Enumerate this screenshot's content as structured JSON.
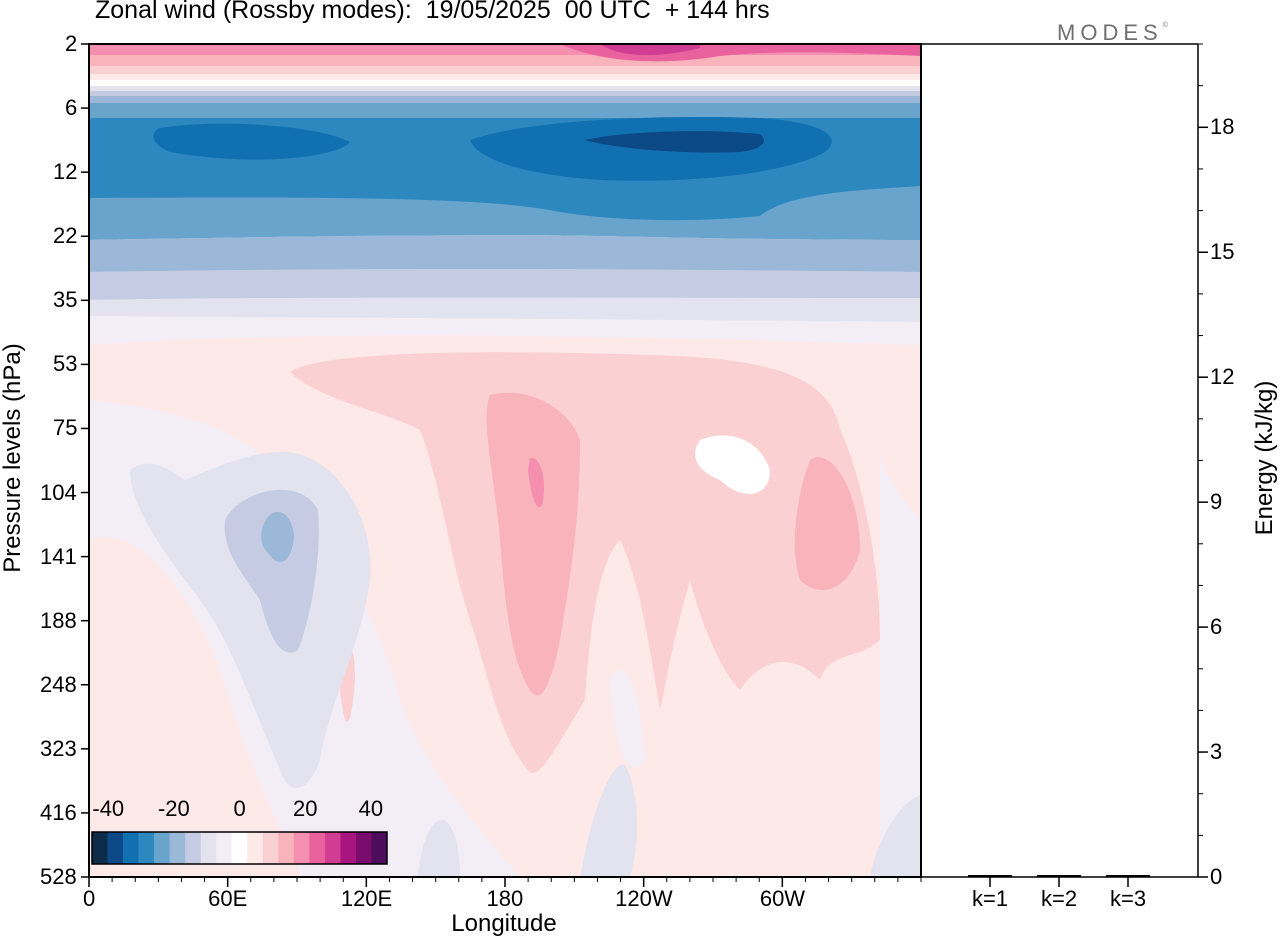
{
  "title": "Zonal wind (Rossby modes):  19/05/2025  00 UTC  + 144 hrs",
  "brand": {
    "text": "MODES",
    "mark": "©"
  },
  "chart_data": [
    {
      "type": "heatmap",
      "variable": "Zonal wind (Rossby modes)",
      "xlabel": "Longitude",
      "ylabel": "Pressure levels (hPa)",
      "x_ticks": [
        "0",
        "60E",
        "120E",
        "180",
        "120W",
        "60W"
      ],
      "x_range_deg": [
        0,
        360
      ],
      "y_ticks": [
        "2",
        "6",
        "12",
        "22",
        "35",
        "53",
        "75",
        "104",
        "141",
        "188",
        "248",
        "323",
        "416",
        "528"
      ],
      "colorbar": {
        "tick_labels": [
          "-40",
          "-20",
          "0",
          "20",
          "40"
        ],
        "range": [
          -45,
          45
        ],
        "colors": [
          "#0c2c4a",
          "#0b4a86",
          "#1170b0",
          "#2e88c0",
          "#68a4cb",
          "#9bb8d8",
          "#c4cbe2",
          "#e3e3ef",
          "#f3eef6",
          "#ffffff",
          "#fde9e7",
          "#fbd0d2",
          "#f9b3bb",
          "#f48fb0",
          "#e9629e",
          "#d03d92",
          "#a8157f",
          "#7a0c6e",
          "#4c0e5c"
        ]
      },
      "shaded_features": [
        {
          "pressure_hPa": 2,
          "wind": "westerly",
          "max_ms": 18
        },
        {
          "pressure_hPa": 9,
          "wind": "easterly",
          "max_ms": -30
        },
        {
          "pressure_hPa": 104,
          "longitude": "188E",
          "wind": "westerly",
          "max_ms": 17
        },
        {
          "pressure_hPa": 120,
          "longitude": "80E",
          "wind": "easterly",
          "max_ms": -15
        }
      ]
    },
    {
      "type": "bar",
      "categories": [
        "k=1",
        "k=2",
        "k=3"
      ],
      "values": [
        0,
        0,
        0
      ],
      "ylabel": "Energy (kJ/kg)",
      "y_ticks": [
        "0",
        "3",
        "6",
        "9",
        "12",
        "15",
        "18"
      ],
      "ylim": [
        0,
        20
      ]
    }
  ]
}
